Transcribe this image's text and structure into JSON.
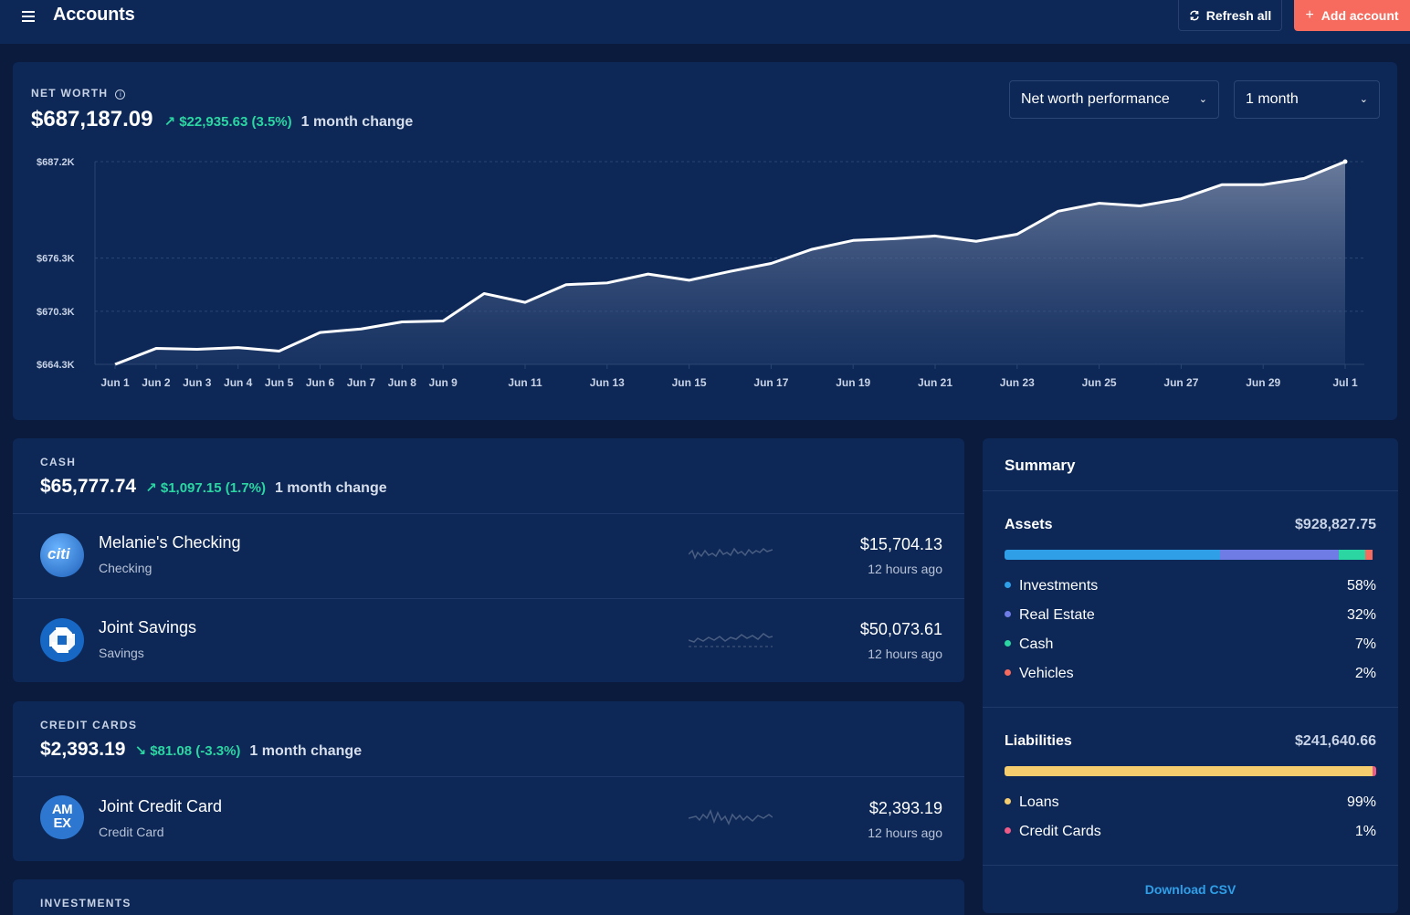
{
  "header": {
    "title": "Accounts",
    "refresh_label": "Refresh all",
    "add_label": "Add account"
  },
  "net_worth": {
    "label": "NET WORTH",
    "value": "$687,187.09",
    "change": "$22,935.63 (3.5%)",
    "change_label": "1 month change",
    "performance_select": "Net worth performance",
    "period_select": "1 month"
  },
  "chart_data": {
    "type": "area",
    "title": "Net worth performance",
    "y_tick_labels": [
      "$687.2K",
      "$676.3K",
      "$670.3K",
      "$664.3K"
    ],
    "y_tick_values": [
      687.2,
      676.3,
      670.3,
      664.3
    ],
    "x_tick_labels": [
      "Jun 1",
      "Jun 2",
      "Jun 3",
      "Jun 4",
      "Jun 5",
      "Jun 6",
      "Jun 7",
      "Jun 8",
      "Jun 9",
      "Jun 11",
      "Jun 13",
      "Jun 15",
      "Jun 17",
      "Jun 19",
      "Jun 21",
      "Jun 23",
      "Jun 25",
      "Jun 27",
      "Jun 29",
      "Jul 1"
    ],
    "x_tick_days": [
      1,
      2,
      3,
      4,
      5,
      6,
      7,
      8,
      9,
      11,
      13,
      15,
      17,
      19,
      21,
      23,
      25,
      27,
      29,
      31
    ],
    "x_days": [
      1,
      2,
      3,
      4,
      5,
      6,
      7,
      8,
      9,
      10,
      11,
      12,
      13,
      14,
      15,
      16,
      17,
      18,
      19,
      20,
      21,
      22,
      23,
      24,
      25,
      26,
      27,
      28,
      29,
      30,
      31
    ],
    "values": [
      664.3,
      666.1,
      666.0,
      666.2,
      665.8,
      667.9,
      668.3,
      669.1,
      669.2,
      672.3,
      671.3,
      673.3,
      673.5,
      674.5,
      673.8,
      674.8,
      675.7,
      677.3,
      678.3,
      678.5,
      678.8,
      678.2,
      679.0,
      681.6,
      682.5,
      682.2,
      683.0,
      684.6,
      684.6,
      685.3,
      687.2
    ],
    "ylim": [
      664.3,
      687.2
    ],
    "grid": true
  },
  "cash": {
    "label": "CASH",
    "value": "$65,777.74",
    "change": "$1,097.15 (1.7%)",
    "change_label": "1 month change",
    "accounts": [
      {
        "name": "Melanie's Checking",
        "type": "Checking",
        "amount": "$15,704.13",
        "updated": "12 hours ago",
        "logo_text": "citi"
      },
      {
        "name": "Joint Savings",
        "type": "Savings",
        "amount": "$50,073.61",
        "updated": "12 hours ago"
      }
    ]
  },
  "credit_cards": {
    "label": "CREDIT CARDS",
    "value": "$2,393.19",
    "change": "$81.08 (-3.3%)",
    "change_label": "1 month change",
    "accounts": [
      {
        "name": "Joint Credit Card",
        "type": "Credit Card",
        "amount": "$2,393.19",
        "updated": "12 hours ago",
        "logo_text": "AM EX"
      }
    ]
  },
  "investments": {
    "label": "INVESTMENTS"
  },
  "summary": {
    "title": "Summary",
    "assets": {
      "label": "Assets",
      "total": "$928,827.75",
      "items": [
        {
          "name": "Investments",
          "pct": "58%",
          "value": 58,
          "color": "#2f9fe8"
        },
        {
          "name": "Real Estate",
          "pct": "32%",
          "value": 32,
          "color": "#6f7ce6"
        },
        {
          "name": "Cash",
          "pct": "7%",
          "value": 7,
          "color": "#2bd6a2"
        },
        {
          "name": "Vehicles",
          "pct": "2%",
          "value": 2,
          "color": "#f66b5d"
        }
      ]
    },
    "liabilities": {
      "label": "Liabilities",
      "total": "$241,640.66",
      "items": [
        {
          "name": "Loans",
          "pct": "99%",
          "value": 99,
          "color": "#f5cc6e"
        },
        {
          "name": "Credit Cards",
          "pct": "1%",
          "value": 1,
          "color": "#ef5a87"
        }
      ]
    },
    "download_label": "Download CSV"
  }
}
